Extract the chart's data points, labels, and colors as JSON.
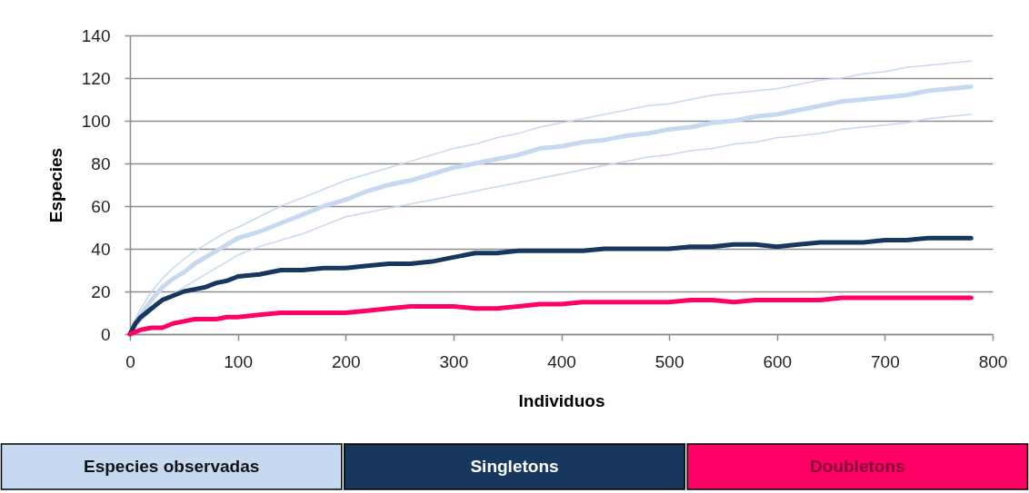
{
  "chart_data": {
    "type": "line",
    "xlabel": "Individuos",
    "ylabel": "Especies",
    "x": [
      0,
      5,
      10,
      20,
      30,
      40,
      50,
      60,
      70,
      80,
      90,
      100,
      120,
      140,
      160,
      180,
      200,
      220,
      240,
      260,
      280,
      300,
      320,
      340,
      360,
      380,
      400,
      420,
      440,
      460,
      480,
      500,
      520,
      540,
      560,
      580,
      600,
      620,
      640,
      660,
      680,
      700,
      720,
      740,
      760,
      780
    ],
    "series": [
      {
        "color": "#c6d9f1",
        "values": [
          0,
          7,
          12,
          20,
          26,
          31,
          35,
          39,
          42,
          45,
          48,
          50,
          55,
          60,
          64,
          68,
          72,
          75,
          78,
          81,
          84,
          87,
          89,
          92,
          94,
          97,
          99,
          101,
          103,
          105,
          107,
          108,
          110,
          112,
          113,
          114,
          115,
          117,
          119,
          120,
          122,
          123,
          125,
          126,
          127,
          128
        ]
      },
      {
        "color": "#c6d9f1",
        "values": [
          0,
          3,
          6,
          11,
          15,
          19,
          22,
          25,
          28,
          31,
          34,
          37,
          41,
          44,
          47,
          51,
          55,
          57,
          59,
          61,
          63,
          65,
          67,
          69,
          71,
          73,
          75,
          77,
          79,
          81,
          83,
          84,
          86,
          87,
          89,
          90,
          92,
          93,
          94,
          96,
          97,
          98,
          99,
          101,
          102,
          103
        ]
      },
      {
        "name": "Especies observadas",
        "color": "#c6d9f1",
        "values": [
          0,
          5,
          9,
          16,
          22,
          26,
          29,
          33,
          36,
          39,
          42,
          45,
          48,
          52,
          56,
          60,
          63,
          67,
          70,
          72,
          75,
          78,
          80,
          82,
          84,
          87,
          88,
          90,
          91,
          93,
          94,
          96,
          97,
          99,
          100,
          102,
          103,
          105,
          107,
          109,
          110,
          111,
          112,
          114,
          115,
          116
        ]
      },
      {
        "name": "Singletons",
        "color": "#17375e",
        "values": [
          0,
          5,
          8,
          12,
          16,
          18,
          20,
          21,
          22,
          24,
          25,
          27,
          28,
          30,
          30,
          31,
          31,
          32,
          33,
          33,
          34,
          36,
          38,
          38,
          39,
          39,
          39,
          39,
          40,
          40,
          40,
          40,
          41,
          41,
          42,
          42,
          41,
          42,
          43,
          43,
          43,
          44,
          44,
          45,
          45,
          45
        ]
      },
      {
        "name": "Doubletons",
        "color": "#ff0066",
        "values": [
          0,
          1,
          2,
          3,
          3,
          5,
          6,
          7,
          7,
          7,
          8,
          8,
          9,
          10,
          10,
          10,
          10,
          11,
          12,
          13,
          13,
          13,
          12,
          12,
          13,
          14,
          14,
          15,
          15,
          15,
          15,
          15,
          16,
          16,
          15,
          16,
          16,
          16,
          16,
          17,
          17,
          17,
          17,
          17,
          17,
          17
        ]
      }
    ],
    "xlim": [
      0,
      800
    ],
    "xticks": [
      0,
      100,
      200,
      300,
      400,
      500,
      600,
      700,
      800
    ],
    "ylim": [
      0,
      140
    ],
    "yticks": [
      0,
      20,
      40,
      60,
      80,
      100,
      120,
      140
    ],
    "grid": "y",
    "legend": "bottom"
  }
}
